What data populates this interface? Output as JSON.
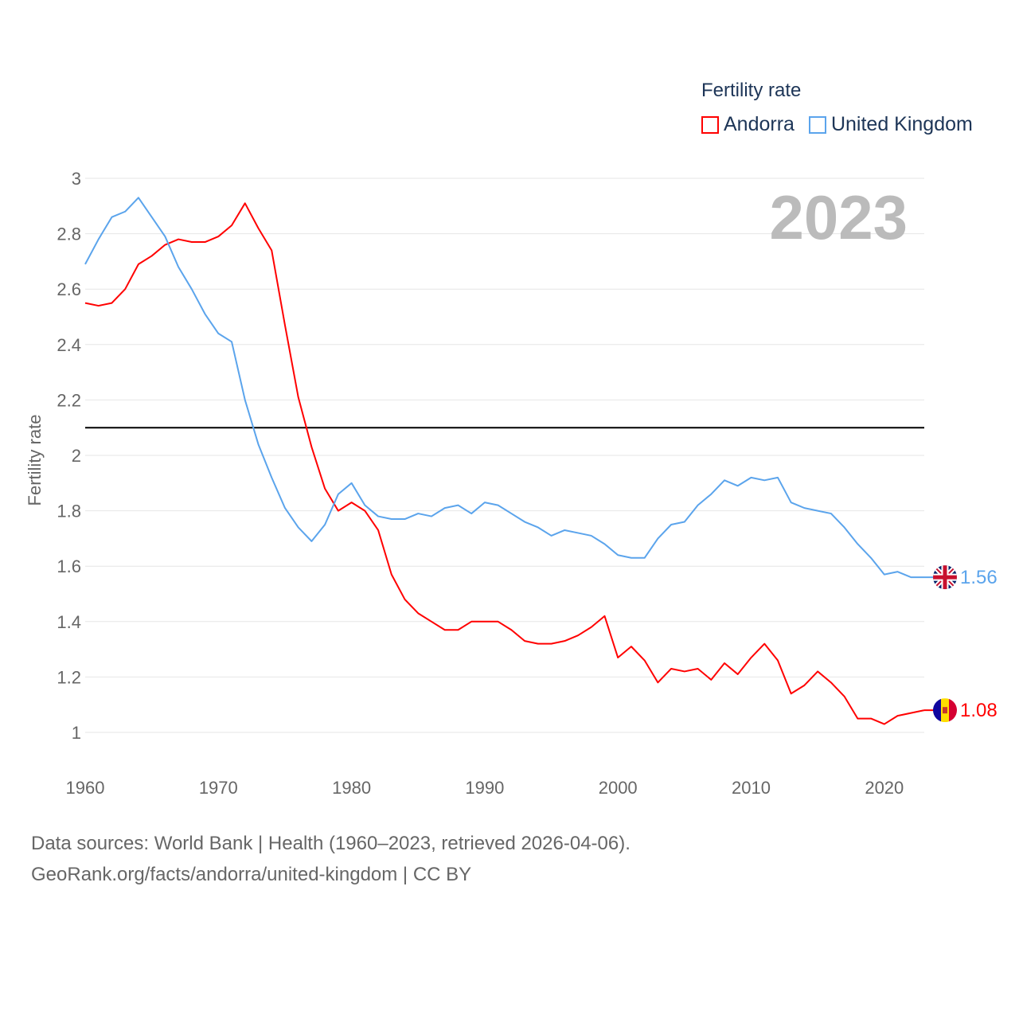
{
  "chart_data": {
    "type": "line",
    "year_label": "2023",
    "legend_title": "Fertility rate",
    "ylabel": "Fertility rate",
    "xlabel": "",
    "xlim": [
      1960,
      2023
    ],
    "ylim": [
      1,
      3
    ],
    "yticks": [
      "1",
      "1.2",
      "1.4",
      "1.6",
      "1.8",
      "2",
      "2.2",
      "2.4",
      "2.6",
      "2.8",
      "3"
    ],
    "xticks": [
      "1960",
      "1970",
      "1980",
      "1990",
      "2000",
      "2010",
      "2020"
    ],
    "grid": true,
    "reference_line": 2.1,
    "legend_position": "top-right",
    "x_start": 1960,
    "series": [
      {
        "name": "Andorra",
        "color": "#ff0000",
        "end_label": "1.08",
        "flag": "andorra-flag",
        "values": [
          2.55,
          2.54,
          2.55,
          2.6,
          2.69,
          2.72,
          2.76,
          2.78,
          2.77,
          2.77,
          2.79,
          2.83,
          2.91,
          2.82,
          2.74,
          2.47,
          2.21,
          2.03,
          1.88,
          1.8,
          1.83,
          1.8,
          1.73,
          1.57,
          1.48,
          1.43,
          1.4,
          1.37,
          1.37,
          1.4,
          1.4,
          1.4,
          1.37,
          1.33,
          1.32,
          1.32,
          1.33,
          1.35,
          1.38,
          1.42,
          1.27,
          1.31,
          1.26,
          1.18,
          1.23,
          1.22,
          1.23,
          1.19,
          1.25,
          1.21,
          1.27,
          1.32,
          1.26,
          1.14,
          1.17,
          1.22,
          1.18,
          1.13,
          1.05,
          1.05,
          1.03,
          1.06,
          1.07,
          1.08
        ]
      },
      {
        "name": "United Kingdom",
        "color": "#5ba4ec",
        "end_label": "1.56",
        "flag": "uk-flag",
        "values": [
          2.69,
          2.78,
          2.86,
          2.88,
          2.93,
          2.86,
          2.79,
          2.68,
          2.6,
          2.51,
          2.44,
          2.41,
          2.2,
          2.04,
          1.92,
          1.81,
          1.74,
          1.69,
          1.75,
          1.86,
          1.9,
          1.82,
          1.78,
          1.77,
          1.77,
          1.79,
          1.78,
          1.81,
          1.82,
          1.79,
          1.83,
          1.82,
          1.79,
          1.76,
          1.74,
          1.71,
          1.73,
          1.72,
          1.71,
          1.68,
          1.64,
          1.63,
          1.63,
          1.7,
          1.75,
          1.76,
          1.82,
          1.86,
          1.91,
          1.89,
          1.92,
          1.91,
          1.92,
          1.83,
          1.81,
          1.8,
          1.79,
          1.74,
          1.68,
          1.63,
          1.57,
          1.58,
          1.56,
          1.56
        ]
      }
    ]
  },
  "footer": {
    "line1": "Data sources: World Bank | Health (1960–2023, retrieved 2026-04-06).",
    "line2": "GeoRank.org/facts/andorra/united-kingdom | CC BY"
  }
}
